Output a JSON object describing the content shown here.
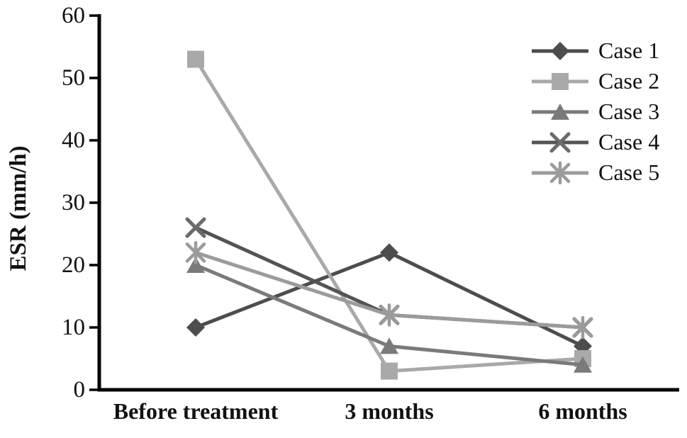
{
  "figure": {
    "background": "#ffffff"
  },
  "chart_data": {
    "type": "line",
    "title": "",
    "xlabel": "",
    "ylabel": "ESR (mm/h)",
    "categories": [
      "Before treatment",
      "3 months",
      "6 months"
    ],
    "series": [
      {
        "name": "Case 1",
        "marker": "diamond",
        "color": "#4d4d4d",
        "values": [
          10,
          22,
          7
        ]
      },
      {
        "name": "Case 2",
        "marker": "square",
        "color": "#a9a9a9",
        "values": [
          53,
          3,
          5
        ]
      },
      {
        "name": "Case 3",
        "marker": "triangle",
        "color": "#7a7a7a",
        "values": [
          20,
          7,
          4
        ]
      },
      {
        "name": "Case 4",
        "marker": "x",
        "color": "#545454",
        "marker_color": "#6b6b6b",
        "values": [
          26,
          12,
          10
        ]
      },
      {
        "name": "Case 5",
        "marker": "asterisk",
        "color": "#9b9b9b",
        "values": [
          22,
          12,
          10
        ]
      }
    ],
    "ylim": [
      0,
      60
    ],
    "yticks": [
      0,
      10,
      20,
      30,
      40,
      50,
      60
    ],
    "grid": false,
    "legend_position": "top-right",
    "axis_color": "#000000",
    "text_color": "#111111"
  }
}
